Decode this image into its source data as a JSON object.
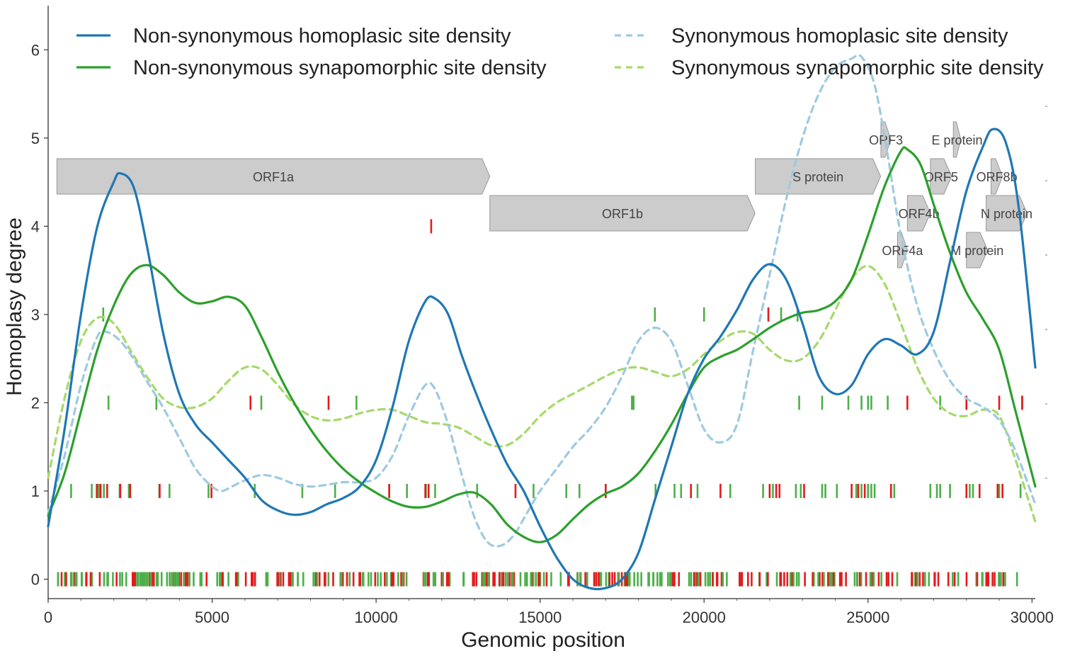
{
  "chart_data": {
    "type": "line",
    "xlabel": "Genomic position",
    "ylabel": "Homoplasy degree",
    "xlim": [
      0,
      30100
    ],
    "ylim": [
      -0.22,
      6.5
    ],
    "xticks": [
      0,
      5000,
      10000,
      15000,
      20000,
      25000,
      30000
    ],
    "yticks": [
      0,
      1,
      2,
      3,
      4,
      5,
      6
    ],
    "legend_position": "top",
    "series": [
      {
        "name": "Non-synonymous homoplasic site density",
        "style": "solid",
        "color": "#1f77b4",
        "points": [
          [
            0,
            0.6
          ],
          [
            500,
            1.7
          ],
          [
            1000,
            3.0
          ],
          [
            1500,
            4.0
          ],
          [
            2000,
            4.5
          ],
          [
            2200,
            4.6
          ],
          [
            2600,
            4.45
          ],
          [
            3000,
            3.8
          ],
          [
            3500,
            2.8
          ],
          [
            4000,
            2.1
          ],
          [
            4500,
            1.75
          ],
          [
            5000,
            1.55
          ],
          [
            5500,
            1.35
          ],
          [
            6000,
            1.15
          ],
          [
            6500,
            0.9
          ],
          [
            7000,
            0.78
          ],
          [
            7500,
            0.73
          ],
          [
            8000,
            0.76
          ],
          [
            8500,
            0.85
          ],
          [
            9000,
            0.92
          ],
          [
            9500,
            1.05
          ],
          [
            10000,
            1.35
          ],
          [
            10500,
            1.95
          ],
          [
            11000,
            2.7
          ],
          [
            11500,
            3.15
          ],
          [
            11800,
            3.18
          ],
          [
            12200,
            3.0
          ],
          [
            12600,
            2.55
          ],
          [
            13000,
            2.15
          ],
          [
            13500,
            1.7
          ],
          [
            14000,
            1.3
          ],
          [
            14500,
            1.0
          ],
          [
            15000,
            0.6
          ],
          [
            15500,
            0.25
          ],
          [
            16000,
            0.0
          ],
          [
            16500,
            -0.1
          ],
          [
            17000,
            -0.1
          ],
          [
            17500,
            0.0
          ],
          [
            18000,
            0.3
          ],
          [
            18500,
            0.9
          ],
          [
            19000,
            1.5
          ],
          [
            19500,
            2.1
          ],
          [
            20000,
            2.5
          ],
          [
            20500,
            2.75
          ],
          [
            21000,
            3.05
          ],
          [
            21500,
            3.4
          ],
          [
            22000,
            3.57
          ],
          [
            22500,
            3.4
          ],
          [
            23000,
            2.9
          ],
          [
            23500,
            2.3
          ],
          [
            24000,
            2.1
          ],
          [
            24500,
            2.2
          ],
          [
            25000,
            2.55
          ],
          [
            25500,
            2.72
          ],
          [
            26000,
            2.65
          ],
          [
            26500,
            2.55
          ],
          [
            27000,
            2.8
          ],
          [
            27500,
            3.6
          ],
          [
            28000,
            4.4
          ],
          [
            28500,
            4.9
          ],
          [
            28800,
            5.1
          ],
          [
            29200,
            4.95
          ],
          [
            29600,
            4.2
          ],
          [
            30100,
            2.4
          ]
        ]
      },
      {
        "name": "Non-synonymous synapomorphic site density",
        "style": "solid",
        "color": "#2ca02c",
        "points": [
          [
            0,
            0.72
          ],
          [
            500,
            1.2
          ],
          [
            1000,
            1.9
          ],
          [
            1500,
            2.6
          ],
          [
            2000,
            3.1
          ],
          [
            2500,
            3.45
          ],
          [
            3000,
            3.56
          ],
          [
            3500,
            3.45
          ],
          [
            4000,
            3.25
          ],
          [
            4500,
            3.13
          ],
          [
            5000,
            3.15
          ],
          [
            5500,
            3.2
          ],
          [
            6000,
            3.1
          ],
          [
            6500,
            2.75
          ],
          [
            7000,
            2.35
          ],
          [
            7500,
            2.0
          ],
          [
            8000,
            1.7
          ],
          [
            8500,
            1.45
          ],
          [
            9000,
            1.25
          ],
          [
            9500,
            1.1
          ],
          [
            10000,
            0.98
          ],
          [
            10500,
            0.88
          ],
          [
            11000,
            0.82
          ],
          [
            11500,
            0.82
          ],
          [
            12000,
            0.88
          ],
          [
            12500,
            0.96
          ],
          [
            13000,
            0.98
          ],
          [
            13500,
            0.85
          ],
          [
            14000,
            0.62
          ],
          [
            14500,
            0.48
          ],
          [
            15000,
            0.42
          ],
          [
            15500,
            0.5
          ],
          [
            16000,
            0.68
          ],
          [
            16500,
            0.85
          ],
          [
            17000,
            0.97
          ],
          [
            17500,
            1.05
          ],
          [
            18000,
            1.2
          ],
          [
            18500,
            1.45
          ],
          [
            19000,
            1.75
          ],
          [
            19500,
            2.1
          ],
          [
            20000,
            2.4
          ],
          [
            20500,
            2.52
          ],
          [
            21000,
            2.6
          ],
          [
            21500,
            2.72
          ],
          [
            22000,
            2.85
          ],
          [
            22500,
            2.95
          ],
          [
            23000,
            3.02
          ],
          [
            23500,
            3.05
          ],
          [
            24000,
            3.15
          ],
          [
            24500,
            3.4
          ],
          [
            25000,
            3.9
          ],
          [
            25500,
            4.45
          ],
          [
            26000,
            4.85
          ],
          [
            26200,
            4.87
          ],
          [
            26600,
            4.7
          ],
          [
            27000,
            4.25
          ],
          [
            27500,
            3.7
          ],
          [
            28000,
            3.25
          ],
          [
            28500,
            2.95
          ],
          [
            29000,
            2.6
          ],
          [
            29500,
            1.9
          ],
          [
            30100,
            1.05
          ]
        ]
      },
      {
        "name": "Synonymous homoplasic site density",
        "style": "dashed",
        "color": "#9ecae1",
        "points": [
          [
            0,
            0.75
          ],
          [
            500,
            1.4
          ],
          [
            1000,
            2.2
          ],
          [
            1500,
            2.75
          ],
          [
            1800,
            2.8
          ],
          [
            2200,
            2.7
          ],
          [
            2600,
            2.5
          ],
          [
            3000,
            2.25
          ],
          [
            3500,
            1.95
          ],
          [
            4000,
            1.6
          ],
          [
            4500,
            1.25
          ],
          [
            5000,
            1.05
          ],
          [
            5300,
            1.0
          ],
          [
            5600,
            1.05
          ],
          [
            6000,
            1.12
          ],
          [
            6500,
            1.18
          ],
          [
            7000,
            1.15
          ],
          [
            7500,
            1.08
          ],
          [
            8000,
            1.05
          ],
          [
            8500,
            1.07
          ],
          [
            9000,
            1.1
          ],
          [
            9500,
            1.1
          ],
          [
            10000,
            1.15
          ],
          [
            10500,
            1.4
          ],
          [
            11000,
            1.85
          ],
          [
            11500,
            2.2
          ],
          [
            11800,
            2.15
          ],
          [
            12200,
            1.75
          ],
          [
            12600,
            1.2
          ],
          [
            13000,
            0.7
          ],
          [
            13400,
            0.42
          ],
          [
            13800,
            0.38
          ],
          [
            14200,
            0.5
          ],
          [
            14600,
            0.75
          ],
          [
            15000,
            1.0
          ],
          [
            15500,
            1.25
          ],
          [
            16000,
            1.5
          ],
          [
            16500,
            1.7
          ],
          [
            17000,
            1.95
          ],
          [
            17500,
            2.3
          ],
          [
            18000,
            2.7
          ],
          [
            18500,
            2.85
          ],
          [
            19000,
            2.7
          ],
          [
            19500,
            2.2
          ],
          [
            20000,
            1.7
          ],
          [
            20500,
            1.55
          ],
          [
            21000,
            1.75
          ],
          [
            21500,
            2.6
          ],
          [
            22000,
            3.45
          ],
          [
            22500,
            4.3
          ],
          [
            23000,
            5.0
          ],
          [
            23500,
            5.5
          ],
          [
            24000,
            5.8
          ],
          [
            24500,
            5.9
          ],
          [
            24800,
            5.92
          ],
          [
            25200,
            5.6
          ],
          [
            25600,
            4.8
          ],
          [
            26000,
            3.9
          ],
          [
            26500,
            3.1
          ],
          [
            27000,
            2.6
          ],
          [
            27500,
            2.25
          ],
          [
            28000,
            2.05
          ],
          [
            28500,
            1.95
          ],
          [
            29000,
            1.8
          ],
          [
            29500,
            1.45
          ],
          [
            30100,
            0.85
          ]
        ]
      },
      {
        "name": "Synonymous synapomorphic site density",
        "style": "dashed",
        "color": "#a6d96a",
        "points": [
          [
            0,
            1.15
          ],
          [
            500,
            2.05
          ],
          [
            1000,
            2.7
          ],
          [
            1500,
            2.96
          ],
          [
            2000,
            2.9
          ],
          [
            2500,
            2.6
          ],
          [
            3000,
            2.3
          ],
          [
            3500,
            2.05
          ],
          [
            4000,
            1.95
          ],
          [
            4500,
            1.95
          ],
          [
            5000,
            2.05
          ],
          [
            5500,
            2.25
          ],
          [
            6000,
            2.4
          ],
          [
            6500,
            2.38
          ],
          [
            7000,
            2.2
          ],
          [
            7500,
            1.98
          ],
          [
            8000,
            1.85
          ],
          [
            8500,
            1.8
          ],
          [
            9000,
            1.82
          ],
          [
            9500,
            1.88
          ],
          [
            10000,
            1.92
          ],
          [
            10500,
            1.92
          ],
          [
            11000,
            1.85
          ],
          [
            11500,
            1.78
          ],
          [
            12000,
            1.76
          ],
          [
            12500,
            1.72
          ],
          [
            13000,
            1.62
          ],
          [
            13500,
            1.52
          ],
          [
            14000,
            1.52
          ],
          [
            14500,
            1.65
          ],
          [
            15000,
            1.85
          ],
          [
            15500,
            2.0
          ],
          [
            16000,
            2.1
          ],
          [
            16500,
            2.2
          ],
          [
            17000,
            2.3
          ],
          [
            17500,
            2.38
          ],
          [
            18000,
            2.4
          ],
          [
            18500,
            2.35
          ],
          [
            19000,
            2.3
          ],
          [
            19500,
            2.38
          ],
          [
            20000,
            2.55
          ],
          [
            20500,
            2.7
          ],
          [
            21000,
            2.8
          ],
          [
            21500,
            2.78
          ],
          [
            22000,
            2.6
          ],
          [
            22500,
            2.48
          ],
          [
            23000,
            2.5
          ],
          [
            23500,
            2.7
          ],
          [
            24000,
            3.05
          ],
          [
            24500,
            3.4
          ],
          [
            25000,
            3.55
          ],
          [
            25500,
            3.35
          ],
          [
            26000,
            2.9
          ],
          [
            26500,
            2.4
          ],
          [
            27000,
            2.05
          ],
          [
            27500,
            1.88
          ],
          [
            28000,
            1.85
          ],
          [
            28500,
            1.92
          ],
          [
            29000,
            1.85
          ],
          [
            29500,
            1.35
          ],
          [
            30100,
            0.65
          ]
        ]
      }
    ],
    "orfs": [
      {
        "label": "ORF1a",
        "start": 266,
        "end": 13468,
        "row": 0
      },
      {
        "label": "ORF1b",
        "start": 13468,
        "end": 21555,
        "row": 1
      },
      {
        "label": "S protein",
        "start": 21563,
        "end": 25384,
        "row": 0
      },
      {
        "label": "ORF3",
        "start": 25393,
        "end": 25700,
        "row": -1
      },
      {
        "label": "ORF4a",
        "start": 25900,
        "end": 26200,
        "row": 2
      },
      {
        "label": "ORF4b",
        "start": 26200,
        "end": 26900,
        "row": 1
      },
      {
        "label": "ORF5",
        "start": 26900,
        "end": 27550,
        "row": 0
      },
      {
        "label": "E protein",
        "start": 27600,
        "end": 27830,
        "row": -1
      },
      {
        "label": "M protein",
        "start": 28000,
        "end": 28650,
        "row": 2
      },
      {
        "label": "ORF8b",
        "start": 28750,
        "end": 29100,
        "row": 0
      },
      {
        "label": "N protein",
        "start": 28600,
        "end": 29850,
        "row": 1
      }
    ],
    "site_marks": {
      "green": "#4daf4a",
      "red": "#e41a1c",
      "levels": [
        {
          "y": 1,
          "green": [
            700,
            1330,
            1480,
            1550,
            1700,
            2180,
            2460,
            3390,
            3700,
            4890,
            6300,
            7750,
            8750,
            10400,
            10940,
            11520,
            11800,
            13080,
            14800,
            15800,
            16200,
            17000,
            18520,
            19100,
            19300,
            19800,
            20800,
            21800,
            22100,
            22800,
            22950,
            23600,
            23700,
            24050,
            24640,
            24800,
            25000,
            25100,
            25200,
            25800,
            26900,
            27100,
            27200,
            27500,
            28100,
            28200,
            29000,
            29650
          ],
          "red": [
            1490,
            1600,
            1800,
            2200,
            2500,
            3400,
            4980,
            10400,
            11500,
            11600,
            14250,
            17000,
            19600,
            20500,
            22000,
            22200,
            22300,
            23050,
            24500,
            24700,
            24900,
            25700,
            28000,
            28400,
            28950,
            29100
          ]
        },
        {
          "y": 2,
          "green": [
            1840,
            3300,
            6500,
            9400,
            17800,
            17850,
            22900,
            23600,
            24400,
            24800,
            25000,
            25100,
            25600,
            27200,
            29700
          ],
          "red": [
            6170,
            8550,
            26200,
            28000,
            29000,
            29700
          ]
        },
        {
          "y": 3,
          "green": [
            1680,
            18500,
            20000,
            22350,
            22850
          ],
          "red": [
            21960
          ]
        },
        {
          "y": 4,
          "green": [],
          "red": [
            11680
          ]
        }
      ],
      "baseline": {
        "y": 0,
        "count": 360
      }
    }
  }
}
